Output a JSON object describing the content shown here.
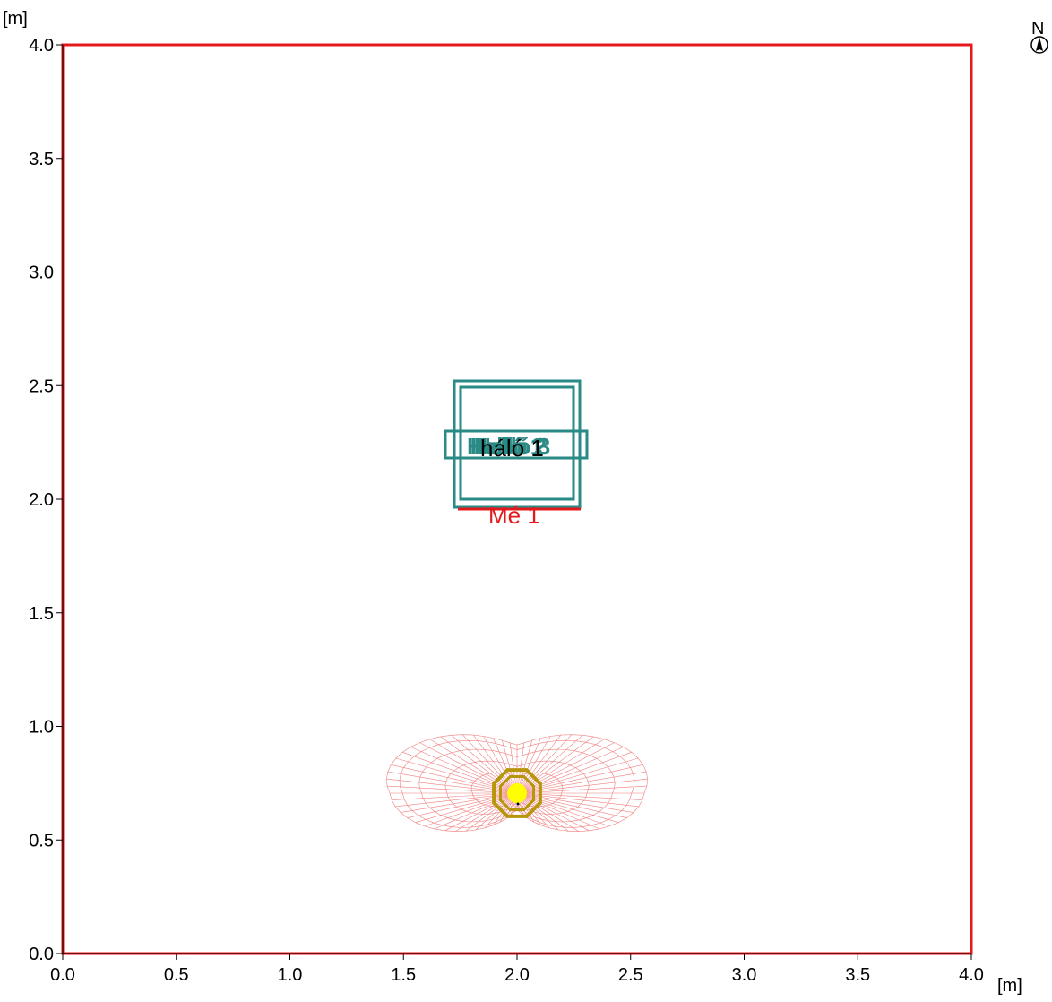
{
  "axes": {
    "x_unit": "[m]",
    "y_unit": "[m]",
    "x_ticks": [
      "0.0",
      "0.5",
      "1.0",
      "1.5",
      "2.0",
      "2.5",
      "3.0",
      "3.5",
      "4.0"
    ],
    "y_ticks": [
      "0.0",
      "0.5",
      "1.0",
      "1.5",
      "2.0",
      "2.5",
      "3.0",
      "3.5",
      "4.0"
    ],
    "x_range": [
      0,
      4
    ],
    "y_range": [
      0,
      4
    ]
  },
  "compass": {
    "label": "N",
    "icon": "compass-north-icon"
  },
  "room": {
    "outline_color": "#e4191c",
    "x": [
      0,
      4
    ],
    "y": [
      0,
      4
    ]
  },
  "luminaires": {
    "labels": [
      "Helló 1",
      "Helló 2",
      "Helló 3"
    ],
    "color": "#2a8a86"
  },
  "grid": {
    "label": "háló 1"
  },
  "measurement_line": {
    "label": "Mé 1",
    "color": "#e4191c"
  },
  "light_source": {
    "center": [
      2.0,
      0.7
    ],
    "lamp_color": "#ffff00",
    "ring_color": "#b8960c",
    "distribution_color": "#f08080"
  },
  "colors": {
    "accent": "#e4191c",
    "luminaire": "#2a8a86",
    "lamp": "#ffff00"
  }
}
